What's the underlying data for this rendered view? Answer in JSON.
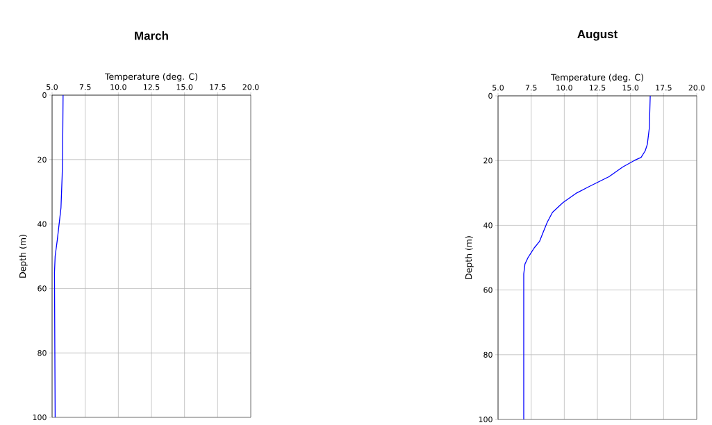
{
  "chart_data": [
    {
      "type": "line",
      "title": "March",
      "xlabel": "Temperature (deg. C)",
      "ylabel": "Depth (m)",
      "xlim": [
        5,
        20
      ],
      "xticks": [
        {
          "value": 5,
          "label": "5.0"
        },
        {
          "value": 7.5,
          "label": "7.5"
        },
        {
          "value": 10,
          "label": "10.0"
        },
        {
          "value": 12.5,
          "label": "12.5"
        },
        {
          "value": 15,
          "label": "15.0"
        },
        {
          "value": 17.5,
          "label": "17.5"
        },
        {
          "value": 20,
          "label": "20.0"
        }
      ],
      "ylim": [
        100,
        0
      ],
      "yticks": [
        0,
        20,
        40,
        60,
        80,
        100
      ],
      "grid": true,
      "series": [
        {
          "color": "#0000ff",
          "x": [
            5.83,
            5.79,
            5.76,
            5.67,
            5.53,
            5.39,
            5.23,
            5.18,
            5.23
          ],
          "values": [
            0,
            20,
            25,
            35,
            40,
            45,
            50,
            55,
            100
          ]
        }
      ]
    },
    {
      "type": "line",
      "title": "August",
      "xlabel": "Temperature (deg. C)",
      "ylabel": "Depth (m)",
      "xlim": [
        5,
        20
      ],
      "xticks": [
        {
          "value": 5,
          "label": "5.0"
        },
        {
          "value": 7.5,
          "label": "7.5"
        },
        {
          "value": 10,
          "label": "10.0"
        },
        {
          "value": 12.5,
          "label": "12.5"
        },
        {
          "value": 15,
          "label": "15.0"
        },
        {
          "value": 17.5,
          "label": "17.5"
        },
        {
          "value": 20,
          "label": "20.0"
        }
      ],
      "ylim": [
        100,
        0
      ],
      "yticks": [
        0,
        20,
        40,
        60,
        80,
        100
      ],
      "grid": true,
      "series": [
        {
          "color": "#0000ff",
          "x": [
            16.49,
            16.42,
            16.27,
            16.11,
            15.8,
            15.28,
            14.41,
            13.37,
            11.89,
            10.94,
            9.9,
            9.11,
            8.72,
            8.42,
            8.13,
            7.73,
            7.26,
            7.03,
            6.94,
            6.94
          ],
          "values": [
            0,
            10,
            15,
            17,
            19,
            20,
            22,
            25,
            28,
            30,
            33,
            36,
            39,
            42,
            45,
            47,
            50,
            52,
            55,
            100
          ]
        }
      ]
    }
  ]
}
